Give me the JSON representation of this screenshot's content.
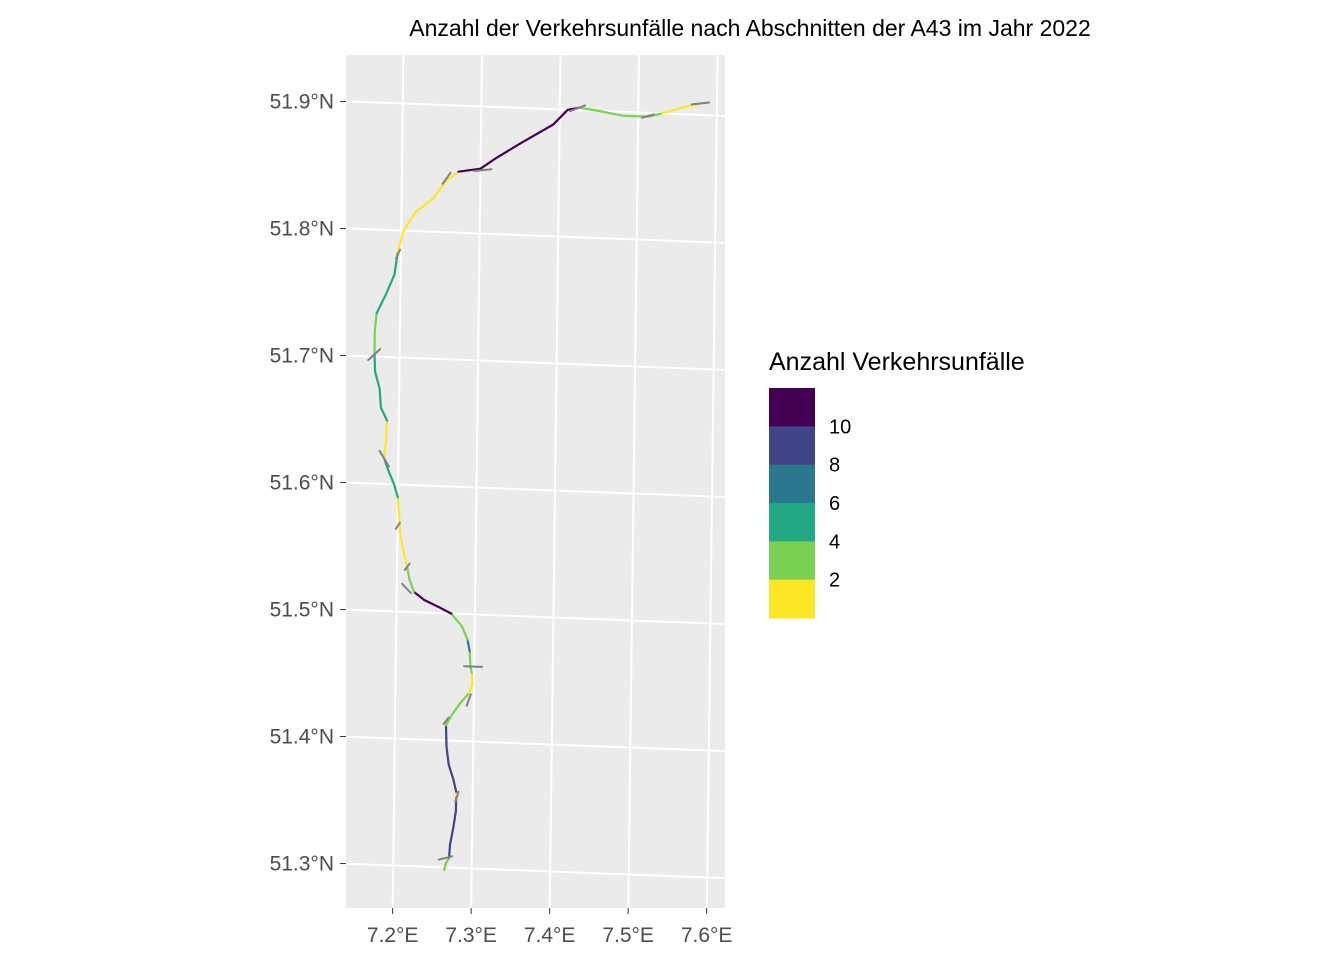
{
  "chart_data": {
    "type": "map",
    "title": "Anzahl der Verkehrsunfälle nach Abschnitten der A43 im Jahr 2022",
    "x_ticks": [
      "7.2°E",
      "7.3°E",
      "7.4°E",
      "7.5°E",
      "7.6°E"
    ],
    "y_ticks": [
      "51.3°N",
      "51.4°N",
      "51.5°N",
      "51.6°N",
      "51.7°N",
      "51.8°N",
      "51.9°N"
    ],
    "lon_range": [
      7.135,
      7.615
    ],
    "lat_range": [
      51.265,
      51.94
    ],
    "grid": true,
    "legend": {
      "title": "Anzahl Verkehrsunfälle",
      "placement": "right",
      "colors": [
        "#440154",
        "#414487",
        "#2a788e",
        "#22a884",
        "#7ad151",
        "#fde725"
      ],
      "labels": [
        "10",
        "8",
        "6",
        "4",
        "2"
      ]
    },
    "interchange_color": "#808080",
    "segments": [
      {
        "accidents": 3,
        "color": "#7ad151",
        "coords": [
          [
            7.265,
            51.298
          ],
          [
            7.267,
            51.303
          ],
          [
            7.271,
            51.308
          ]
        ]
      },
      {
        "accidents": 7,
        "color": "#414487",
        "coords": [
          [
            7.271,
            51.308
          ],
          [
            7.272,
            51.318
          ],
          [
            7.276,
            51.332
          ],
          [
            7.279,
            51.345
          ],
          [
            7.279,
            51.356
          ]
        ]
      },
      {
        "accidents": 1,
        "color": "#fde725",
        "coords": [
          [
            7.279,
            51.356
          ],
          [
            7.279,
            51.36
          ]
        ]
      },
      {
        "accidents": 7,
        "color": "#414487",
        "coords": [
          [
            7.279,
            51.36
          ],
          [
            7.275,
            51.37
          ],
          [
            7.269,
            51.381
          ],
          [
            7.266,
            51.395
          ],
          [
            7.265,
            51.412
          ]
        ]
      },
      {
        "accidents": 3,
        "color": "#7ad151",
        "coords": [
          [
            7.265,
            51.412
          ],
          [
            7.272,
            51.42
          ],
          [
            7.283,
            51.43
          ],
          [
            7.294,
            51.438
          ]
        ]
      },
      {
        "accidents": 1,
        "color": "#fde725",
        "coords": [
          [
            7.294,
            51.438
          ],
          [
            7.298,
            51.445
          ],
          [
            7.297,
            51.454
          ]
        ]
      },
      {
        "accidents": 3,
        "color": "#7ad151",
        "coords": [
          [
            7.297,
            51.454
          ],
          [
            7.295,
            51.46
          ],
          [
            7.294,
            51.471
          ]
        ]
      },
      {
        "accidents": 6,
        "color": "#2a788e",
        "coords": [
          [
            7.294,
            51.471
          ],
          [
            7.291,
            51.48
          ]
        ]
      },
      {
        "accidents": 3,
        "color": "#7ad151",
        "coords": [
          [
            7.291,
            51.48
          ],
          [
            7.284,
            51.49
          ],
          [
            7.27,
            51.5
          ]
        ]
      },
      {
        "accidents": 10,
        "color": "#440154",
        "coords": [
          [
            7.27,
            51.5
          ],
          [
            7.253,
            51.505
          ],
          [
            7.235,
            51.51
          ],
          [
            7.222,
            51.516
          ]
        ]
      },
      {
        "accidents": 3,
        "color": "#7ad151",
        "coords": [
          [
            7.222,
            51.516
          ],
          [
            7.216,
            51.526
          ],
          [
            7.213,
            51.535
          ]
        ]
      },
      {
        "accidents": 1,
        "color": "#fde725",
        "coords": [
          [
            7.213,
            51.535
          ],
          [
            7.208,
            51.548
          ],
          [
            7.204,
            51.56
          ],
          [
            7.202,
            51.575
          ],
          [
            7.2,
            51.59
          ]
        ]
      },
      {
        "accidents": 5,
        "color": "#22a884",
        "coords": [
          [
            7.2,
            51.59
          ],
          [
            7.195,
            51.6
          ],
          [
            7.188,
            51.61
          ],
          [
            7.182,
            51.62
          ]
        ]
      },
      {
        "accidents": 1,
        "color": "#fde725",
        "coords": [
          [
            7.182,
            51.62
          ],
          [
            7.184,
            51.635
          ],
          [
            7.185,
            51.65
          ]
        ]
      },
      {
        "accidents": 5,
        "color": "#22a884",
        "coords": [
          [
            7.185,
            51.65
          ],
          [
            7.177,
            51.66
          ],
          [
            7.175,
            51.675
          ],
          [
            7.169,
            51.688
          ],
          [
            7.168,
            51.702
          ]
        ]
      },
      {
        "accidents": 3,
        "color": "#7ad151",
        "coords": [
          [
            7.168,
            51.702
          ],
          [
            7.168,
            51.72
          ],
          [
            7.17,
            51.734
          ]
        ]
      },
      {
        "accidents": 5,
        "color": "#22a884",
        "coords": [
          [
            7.17,
            51.734
          ],
          [
            7.182,
            51.75
          ],
          [
            7.192,
            51.765
          ],
          [
            7.196,
            51.783
          ]
        ]
      },
      {
        "accidents": 1,
        "color": "#fde725",
        "coords": [
          [
            7.196,
            51.783
          ],
          [
            7.203,
            51.8
          ],
          [
            7.218,
            51.815
          ],
          [
            7.24,
            51.826
          ],
          [
            7.256,
            51.84
          ],
          [
            7.272,
            51.848
          ]
        ]
      },
      {
        "accidents": 10,
        "color": "#440154",
        "coords": [
          [
            7.272,
            51.848
          ],
          [
            7.3,
            51.851
          ],
          [
            7.32,
            51.86
          ],
          [
            7.35,
            51.872
          ],
          [
            7.392,
            51.888
          ],
          [
            7.41,
            51.9
          ],
          [
            7.425,
            51.902
          ]
        ]
      },
      {
        "accidents": 3,
        "color": "#7ad151",
        "coords": [
          [
            7.425,
            51.902
          ],
          [
            7.45,
            51.9
          ],
          [
            7.48,
            51.897
          ],
          [
            7.513,
            51.897
          ],
          [
            7.53,
            51.9
          ]
        ]
      },
      {
        "accidents": 1,
        "color": "#fde725",
        "coords": [
          [
            7.53,
            51.9
          ],
          [
            7.56,
            51.906
          ],
          [
            7.58,
            51.909
          ]
        ]
      }
    ],
    "interchanges": [
      [
        [
          7.258,
          51.306
        ],
        [
          7.275,
          51.309
        ]
      ],
      [
        [
          7.278,
          51.352
        ],
        [
          7.282,
          51.36
        ]
      ],
      [
        [
          7.287,
          51.459
        ],
        [
          7.31,
          51.459
        ]
      ],
      [
        [
          7.262,
          51.413
        ],
        [
          7.268,
          51.418
        ]
      ],
      [
        [
          7.291,
          51.428
        ],
        [
          7.296,
          51.437
        ]
      ],
      [
        [
          7.207,
          51.522
        ],
        [
          7.218,
          51.515
        ]
      ],
      [
        [
          7.21,
          51.533
        ],
        [
          7.216,
          51.538
        ]
      ],
      [
        [
          7.198,
          51.565
        ],
        [
          7.203,
          51.57
        ]
      ],
      [
        [
          7.176,
          51.626
        ],
        [
          7.188,
          51.614
        ]
      ],
      [
        [
          7.16,
          51.697
        ],
        [
          7.175,
          51.706
        ]
      ],
      [
        [
          7.194,
          51.778
        ],
        [
          7.199,
          51.785
        ]
      ],
      [
        [
          7.252,
          51.838
        ],
        [
          7.262,
          51.847
        ]
      ],
      [
        [
          7.292,
          51.849
        ],
        [
          7.314,
          51.851
        ]
      ],
      [
        [
          7.413,
          51.899
        ],
        [
          7.432,
          51.904
        ]
      ],
      [
        [
          7.505,
          51.896
        ],
        [
          7.52,
          51.899
        ]
      ],
      [
        [
          7.568,
          51.908
        ],
        [
          7.59,
          51.91
        ]
      ]
    ]
  }
}
